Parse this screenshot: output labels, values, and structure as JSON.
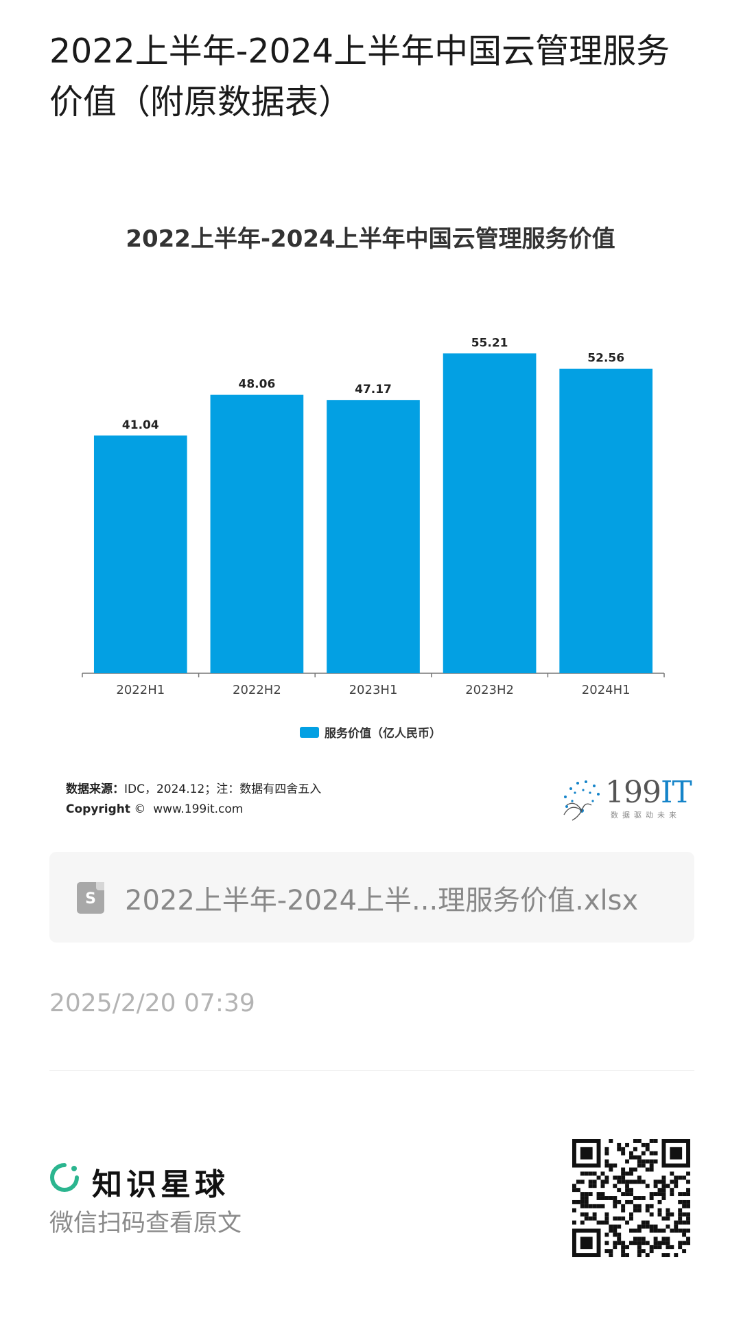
{
  "page": {
    "title": "2022上半年-2024上半年中国云管理服务价值（附原数据表）"
  },
  "chart_data": {
    "type": "bar",
    "title": "2022上半年-2024上半年中国云管理服务价值",
    "categories": [
      "2022H1",
      "2022H2",
      "2023H1",
      "2023H2",
      "2024H1"
    ],
    "series": [
      {
        "name": "服务价值（亿人民币）",
        "values": [
          41.04,
          48.06,
          47.17,
          55.21,
          52.56
        ]
      }
    ],
    "value_labels": [
      "41.04",
      "48.06",
      "47.17",
      "55.21",
      "52.56"
    ],
    "ylim": [
      0,
      60
    ],
    "grid": false,
    "legend_position": "bottom",
    "bar_color": "#03a0e3"
  },
  "source": {
    "label": "数据来源：",
    "text": "IDC，2024.12；注：数据有四舍五入",
    "copyright_label": "Copyright",
    "copyright_symbol": "©",
    "site": "www.199it.com"
  },
  "logo": {
    "brand_main": "199",
    "brand_it": "IT",
    "tagline": "数据驱动未来"
  },
  "file": {
    "icon": "spreadsheet-file-icon",
    "icon_letter": "S",
    "name": "2022上半年-2024上半...理服务价值.xlsx"
  },
  "timestamp": "2025/2/20 07:39",
  "footer": {
    "brand_name": "知识星球",
    "brand_color": "#2bb58f",
    "scan_hint": "微信扫码查看原文"
  }
}
